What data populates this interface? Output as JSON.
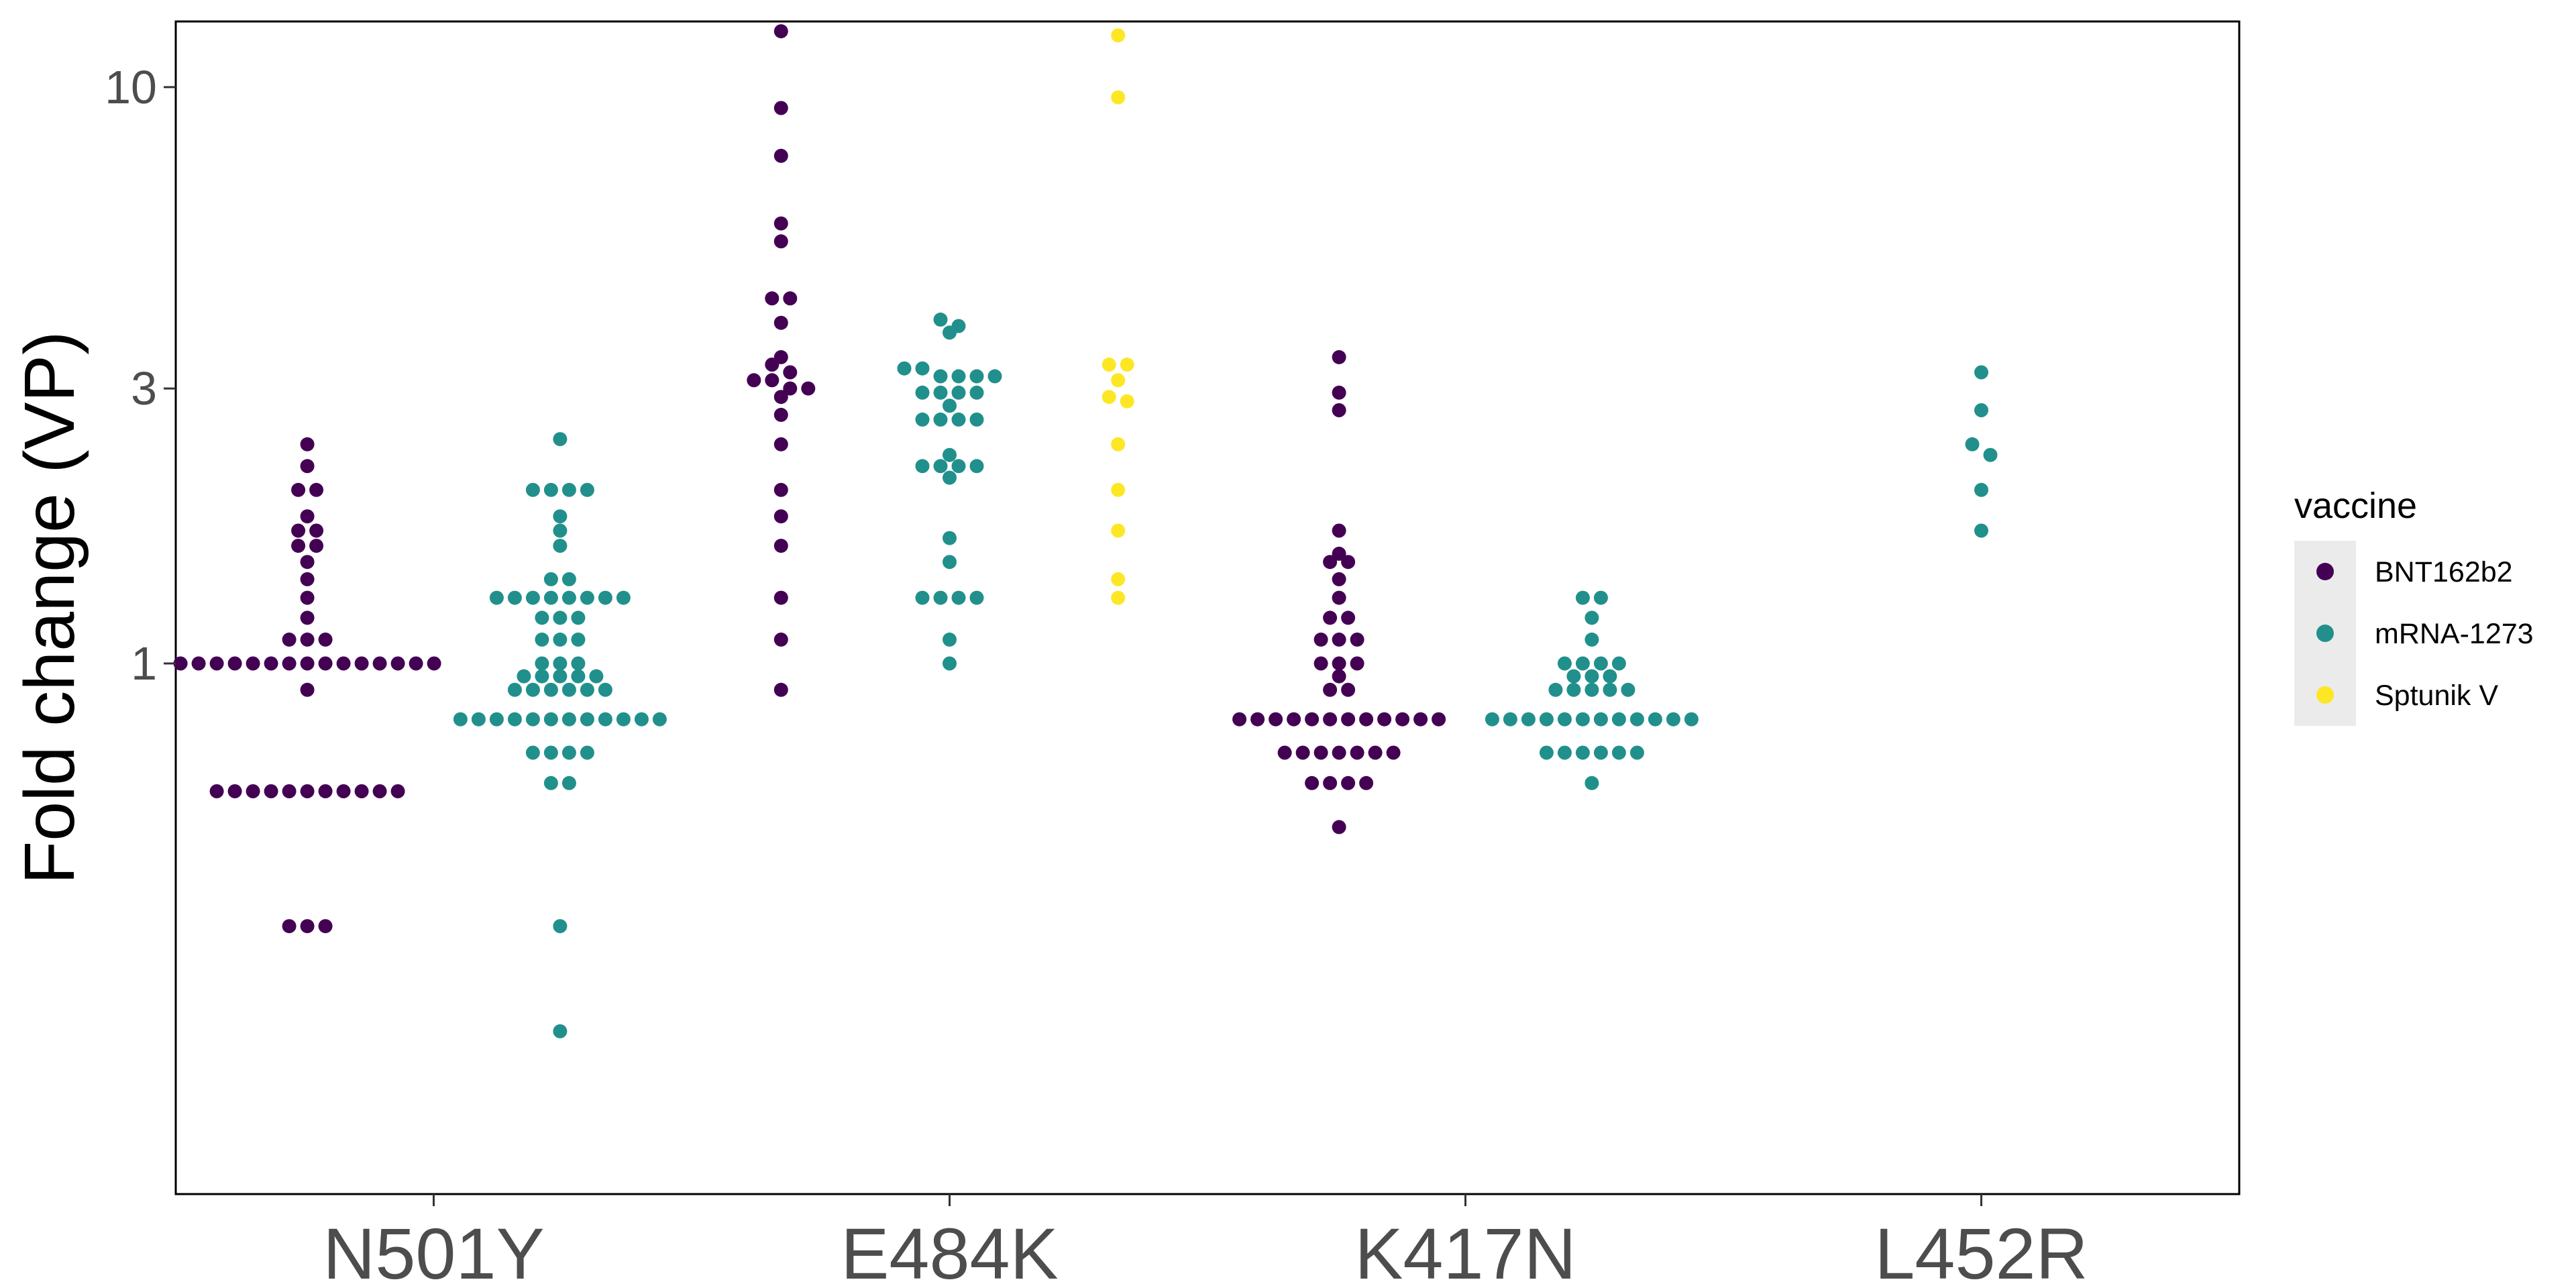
{
  "chart_data": {
    "type": "scatter",
    "subtype": "beeswarm",
    "ylabel": "Fold change (VP)",
    "xlabel": "",
    "y_scale": "log",
    "ylim": [
      0.12,
      13
    ],
    "y_ticks": [
      1,
      3,
      10
    ],
    "y_tick_labels": [
      "1",
      "3",
      "10"
    ],
    "categories": [
      "N501Y",
      "E484K",
      "K417N",
      "L452R"
    ],
    "grid": false,
    "legend": {
      "title": "vaccine",
      "position": "right",
      "entries": [
        {
          "label": "BNT162b2",
          "color": "#440154"
        },
        {
          "label": "mRNA-1273",
          "color": "#21908C"
        },
        {
          "label": "Sptunik V",
          "color": "#FDE725"
        }
      ]
    },
    "series": [
      {
        "name": "BNT162b2",
        "color": "#440154",
        "points": {
          "N501Y": [
            2.4,
            2.2,
            2.0,
            2.0,
            1.8,
            1.7,
            1.7,
            1.6,
            1.6,
            1.5,
            1.4,
            1.3,
            1.2,
            1.1,
            1.1,
            1.1,
            1.0,
            1.0,
            1.0,
            1.0,
            1.0,
            1.0,
            1.0,
            1.0,
            1.0,
            1.0,
            1.0,
            1.0,
            1.0,
            1.0,
            1.0,
            0.9,
            0.6,
            0.6,
            0.6,
            0.6,
            0.6,
            0.6,
            0.6,
            0.6,
            0.6,
            0.6,
            0.6,
            0.35,
            0.35,
            0.35
          ],
          "E484K": [
            12.5,
            9.2,
            7.6,
            5.8,
            5.4,
            4.3,
            3.9,
            4.3,
            3.4,
            3.3,
            3.2,
            3.1,
            3.1,
            3.0,
            3.0,
            2.9,
            2.7,
            2.4,
            2.0,
            1.8,
            1.6,
            1.3,
            1.1,
            0.9
          ],
          "K417N": [
            3.4,
            2.95,
            2.75,
            1.7,
            1.55,
            1.5,
            1.5,
            1.4,
            1.3,
            1.2,
            1.2,
            1.1,
            1.1,
            1.1,
            1.0,
            1.0,
            1.0,
            0.95,
            0.9,
            0.9,
            0.8,
            0.8,
            0.8,
            0.8,
            0.8,
            0.8,
            0.8,
            0.8,
            0.8,
            0.8,
            0.8,
            0.8,
            0.7,
            0.7,
            0.7,
            0.7,
            0.7,
            0.7,
            0.7,
            0.62,
            0.62,
            0.62,
            0.62,
            0.52
          ],
          "L452R": []
        }
      },
      {
        "name": "mRNA-1273",
        "color": "#21908C",
        "points": {
          "N501Y": [
            2.45,
            2.0,
            2.0,
            2.0,
            2.0,
            1.8,
            1.7,
            1.6,
            1.4,
            1.4,
            1.3,
            1.3,
            1.3,
            1.3,
            1.3,
            1.3,
            1.3,
            1.3,
            1.2,
            1.2,
            1.2,
            1.1,
            1.1,
            1.1,
            1.0,
            1.0,
            1.0,
            0.95,
            0.95,
            0.95,
            0.95,
            0.95,
            0.9,
            0.9,
            0.9,
            0.9,
            0.9,
            0.9,
            0.8,
            0.8,
            0.8,
            0.8,
            0.8,
            0.8,
            0.8,
            0.8,
            0.8,
            0.8,
            0.8,
            0.8,
            0.7,
            0.7,
            0.7,
            0.7,
            0.62,
            0.62,
            0.35,
            0.23
          ],
          "E484K": [
            3.95,
            3.85,
            3.75,
            3.25,
            3.25,
            3.15,
            3.15,
            3.15,
            3.15,
            2.95,
            2.95,
            2.95,
            2.95,
            2.8,
            2.65,
            2.65,
            2.65,
            2.65,
            2.3,
            2.2,
            2.2,
            2.2,
            2.2,
            2.1,
            1.65,
            1.5,
            1.3,
            1.3,
            1.3,
            1.3,
            1.1,
            1.0
          ],
          "K417N": [
            1.3,
            1.3,
            1.2,
            1.1,
            1.0,
            1.0,
            1.0,
            1.0,
            0.95,
            0.95,
            0.95,
            0.9,
            0.9,
            0.9,
            0.9,
            0.9,
            0.8,
            0.8,
            0.8,
            0.8,
            0.8,
            0.8,
            0.8,
            0.8,
            0.8,
            0.8,
            0.8,
            0.8,
            0.7,
            0.7,
            0.7,
            0.7,
            0.7,
            0.7,
            0.62
          ],
          "L452R": [
            3.2,
            2.75,
            2.4,
            2.3,
            2.0,
            1.7
          ]
        }
      },
      {
        "name": "Sptunik V",
        "color": "#FDE725",
        "points": {
          "N501Y": [],
          "E484K": [
            12.3,
            9.6,
            3.3,
            3.3,
            3.1,
            2.9,
            2.85,
            2.4,
            2.0,
            1.7,
            1.4,
            1.3
          ],
          "K417N": [],
          "L452R": []
        }
      }
    ]
  }
}
